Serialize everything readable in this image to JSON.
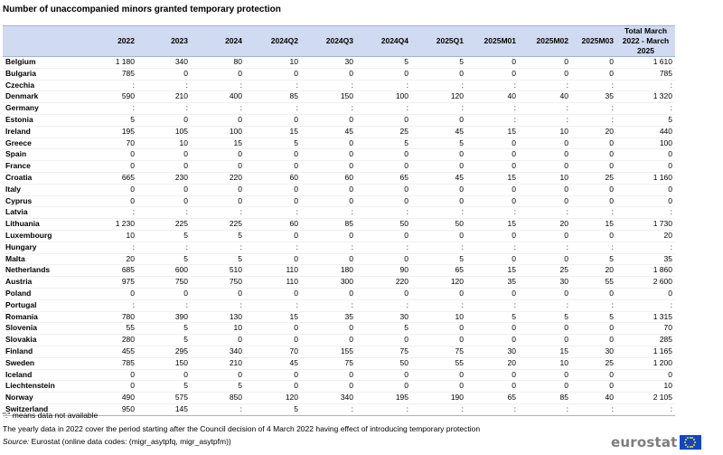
{
  "title": "Number of unaccompanied minors granted temporary protection",
  "table": {
    "columns": [
      "",
      "2022",
      "2023",
      "2024",
      "2024Q2",
      "2024Q3",
      "2024Q4",
      "2025Q1",
      "2025M01",
      "2025M02",
      "2025M03",
      "Total March 2022 - March 2025"
    ],
    "rows": [
      [
        "Belgium",
        "1 180",
        "340",
        "80",
        "10",
        "30",
        "5",
        "5",
        "0",
        "0",
        "0",
        "1 610"
      ],
      [
        "Bulgaria",
        "785",
        "0",
        "0",
        "0",
        "0",
        "0",
        "0",
        "0",
        "0",
        "0",
        "785"
      ],
      [
        "Czechia",
        ":",
        ":",
        ":",
        ":",
        ":",
        ":",
        ":",
        ":",
        ":",
        ":",
        ":"
      ],
      [
        "Denmark",
        "590",
        "210",
        "400",
        "85",
        "150",
        "100",
        "120",
        "40",
        "40",
        "35",
        "1 320"
      ],
      [
        "Germany",
        ":",
        ":",
        ":",
        ":",
        ":",
        ":",
        ":",
        ":",
        ":",
        ":",
        ":"
      ],
      [
        "Estonia",
        "5",
        "0",
        "0",
        "0",
        "0",
        "0",
        "0",
        ":",
        ":",
        ":",
        "5"
      ],
      [
        "Ireland",
        "195",
        "105",
        "100",
        "15",
        "45",
        "25",
        "45",
        "15",
        "10",
        "20",
        "440"
      ],
      [
        "Greece",
        "70",
        "10",
        "15",
        "5",
        "0",
        "5",
        "5",
        "0",
        "0",
        "0",
        "100"
      ],
      [
        "Spain",
        "0",
        "0",
        "0",
        "0",
        "0",
        "0",
        "0",
        "0",
        "0",
        "0",
        "0"
      ],
      [
        "France",
        "0",
        "0",
        "0",
        "0",
        "0",
        "0",
        "0",
        "0",
        "0",
        "0",
        "0"
      ],
      [
        "Croatia",
        "665",
        "230",
        "220",
        "60",
        "60",
        "65",
        "45",
        "15",
        "10",
        "25",
        "1 160"
      ],
      [
        "Italy",
        "0",
        "0",
        "0",
        "0",
        "0",
        "0",
        "0",
        "0",
        "0",
        "0",
        "0"
      ],
      [
        "Cyprus",
        "0",
        "0",
        "0",
        "0",
        "0",
        "0",
        "0",
        "0",
        "0",
        "0",
        "0"
      ],
      [
        "Latvia",
        ":",
        ":",
        ":",
        ":",
        ":",
        ":",
        ":",
        ":",
        ":",
        ":",
        ":"
      ],
      [
        "Lithuania",
        "1 230",
        "225",
        "225",
        "60",
        "85",
        "50",
        "50",
        "15",
        "20",
        "15",
        "1 730"
      ],
      [
        "Luxembourg",
        "10",
        "5",
        "5",
        "0",
        "0",
        "0",
        "0",
        "0",
        "0",
        "0",
        "20"
      ],
      [
        "Hungary",
        ":",
        ":",
        ":",
        ":",
        ":",
        ":",
        ":",
        ":",
        ":",
        ":",
        ":"
      ],
      [
        "Malta",
        "20",
        "5",
        "5",
        "0",
        "0",
        "0",
        "5",
        "0",
        "0",
        "5",
        "35"
      ],
      [
        "Netherlands",
        "685",
        "600",
        "510",
        "110",
        "180",
        "90",
        "65",
        "15",
        "25",
        "20",
        "1 860"
      ],
      [
        "Austria",
        "975",
        "750",
        "750",
        "110",
        "300",
        "220",
        "120",
        "35",
        "30",
        "55",
        "2 600"
      ],
      [
        "Poland",
        "0",
        "0",
        "0",
        "0",
        "0",
        "0",
        "0",
        "0",
        "0",
        "0",
        "0"
      ],
      [
        "Portugal",
        ":",
        ":",
        ":",
        ":",
        ":",
        ":",
        ":",
        ":",
        ":",
        ":",
        ":"
      ],
      [
        "Romania",
        "780",
        "390",
        "130",
        "15",
        "35",
        "30",
        "10",
        "5",
        "5",
        "5",
        "1 315"
      ],
      [
        "Slovenia",
        "55",
        "5",
        "10",
        "0",
        "0",
        "5",
        "0",
        "0",
        "0",
        "0",
        "70"
      ],
      [
        "Slovakia",
        "280",
        "5",
        "0",
        "0",
        "0",
        "0",
        "0",
        "0",
        "0",
        "0",
        "285"
      ],
      [
        "Finland",
        "455",
        "295",
        "340",
        "70",
        "155",
        "75",
        "75",
        "30",
        "15",
        "30",
        "1 165"
      ],
      [
        "Sweden",
        "785",
        "150",
        "210",
        "45",
        "75",
        "50",
        "55",
        "20",
        "10",
        "25",
        "1 200"
      ],
      [
        "Iceland",
        "0",
        "0",
        "0",
        "0",
        "0",
        "0",
        "0",
        "0",
        "0",
        "0",
        "0"
      ],
      [
        "Liechtenstein",
        "0",
        "5",
        "5",
        "0",
        "0",
        "0",
        "0",
        "0",
        "0",
        "0",
        "10"
      ],
      [
        "Norway",
        "490",
        "575",
        "850",
        "120",
        "340",
        "195",
        "190",
        "65",
        "85",
        "40",
        "2 105"
      ],
      [
        "Switzerland",
        "950",
        "145",
        ":",
        "5",
        ":",
        ":",
        ":",
        ":",
        ":",
        ":",
        ":"
      ]
    ]
  },
  "notes": {
    "na": "\":\" means data not available",
    "yearly": "The yearly data in 2022 cover the period starting after the Council decision of 4 March 2022 having effect of introducing temporary protection",
    "source_label": "Source:",
    "source_text": " Eurostat  (online data codes: (migr_asytpfq, migr_asytpfm))"
  },
  "logo": {
    "text": "eurostat",
    "flag_color": "#0e47cb",
    "star_color": "#ffdd00"
  }
}
